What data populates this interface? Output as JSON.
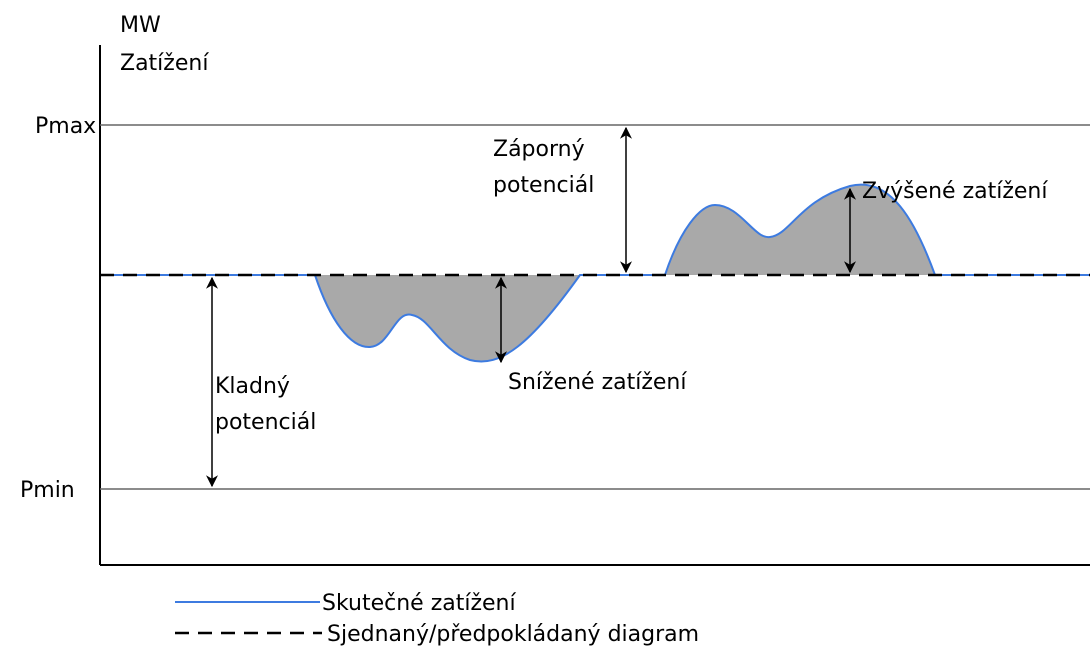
{
  "axis": {
    "unit": "MW",
    "label": "Zatížení",
    "max": "Pmax",
    "min": "Pmin"
  },
  "annotations": {
    "positive": [
      "Kladný",
      "potenciál"
    ],
    "negative": [
      "Záporný",
      "potenciál"
    ],
    "increased": "Zvýšené zatížení",
    "decreased": "Snížené zatížení"
  },
  "legend": {
    "actual": "Skutečné zatížení",
    "planned": "Sjednaný/předpokládaný diagram"
  }
}
